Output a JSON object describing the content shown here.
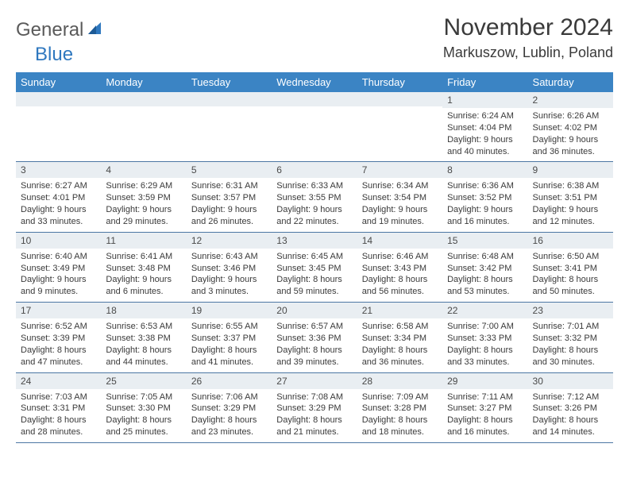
{
  "logo": {
    "text1": "General",
    "text2": "Blue"
  },
  "title": "November 2024",
  "location": "Markuszow, Lublin, Poland",
  "colors": {
    "header_bg": "#3b84c4",
    "header_text": "#ffffff",
    "daynum_bg": "#e9eef2",
    "cell_border": "#4c77a3",
    "body_text": "#3a3a3a",
    "logo_gray": "#5a5a5a",
    "logo_blue": "#2f78bf"
  },
  "day_headers": [
    "Sunday",
    "Monday",
    "Tuesday",
    "Wednesday",
    "Thursday",
    "Friday",
    "Saturday"
  ],
  "weeks": [
    [
      {
        "n": "",
        "sr": "",
        "ss": "",
        "dl": ""
      },
      {
        "n": "",
        "sr": "",
        "ss": "",
        "dl": ""
      },
      {
        "n": "",
        "sr": "",
        "ss": "",
        "dl": ""
      },
      {
        "n": "",
        "sr": "",
        "ss": "",
        "dl": ""
      },
      {
        "n": "",
        "sr": "",
        "ss": "",
        "dl": ""
      },
      {
        "n": "1",
        "sr": "Sunrise: 6:24 AM",
        "ss": "Sunset: 4:04 PM",
        "dl": "Daylight: 9 hours and 40 minutes."
      },
      {
        "n": "2",
        "sr": "Sunrise: 6:26 AM",
        "ss": "Sunset: 4:02 PM",
        "dl": "Daylight: 9 hours and 36 minutes."
      }
    ],
    [
      {
        "n": "3",
        "sr": "Sunrise: 6:27 AM",
        "ss": "Sunset: 4:01 PM",
        "dl": "Daylight: 9 hours and 33 minutes."
      },
      {
        "n": "4",
        "sr": "Sunrise: 6:29 AM",
        "ss": "Sunset: 3:59 PM",
        "dl": "Daylight: 9 hours and 29 minutes."
      },
      {
        "n": "5",
        "sr": "Sunrise: 6:31 AM",
        "ss": "Sunset: 3:57 PM",
        "dl": "Daylight: 9 hours and 26 minutes."
      },
      {
        "n": "6",
        "sr": "Sunrise: 6:33 AM",
        "ss": "Sunset: 3:55 PM",
        "dl": "Daylight: 9 hours and 22 minutes."
      },
      {
        "n": "7",
        "sr": "Sunrise: 6:34 AM",
        "ss": "Sunset: 3:54 PM",
        "dl": "Daylight: 9 hours and 19 minutes."
      },
      {
        "n": "8",
        "sr": "Sunrise: 6:36 AM",
        "ss": "Sunset: 3:52 PM",
        "dl": "Daylight: 9 hours and 16 minutes."
      },
      {
        "n": "9",
        "sr": "Sunrise: 6:38 AM",
        "ss": "Sunset: 3:51 PM",
        "dl": "Daylight: 9 hours and 12 minutes."
      }
    ],
    [
      {
        "n": "10",
        "sr": "Sunrise: 6:40 AM",
        "ss": "Sunset: 3:49 PM",
        "dl": "Daylight: 9 hours and 9 minutes."
      },
      {
        "n": "11",
        "sr": "Sunrise: 6:41 AM",
        "ss": "Sunset: 3:48 PM",
        "dl": "Daylight: 9 hours and 6 minutes."
      },
      {
        "n": "12",
        "sr": "Sunrise: 6:43 AM",
        "ss": "Sunset: 3:46 PM",
        "dl": "Daylight: 9 hours and 3 minutes."
      },
      {
        "n": "13",
        "sr": "Sunrise: 6:45 AM",
        "ss": "Sunset: 3:45 PM",
        "dl": "Daylight: 8 hours and 59 minutes."
      },
      {
        "n": "14",
        "sr": "Sunrise: 6:46 AM",
        "ss": "Sunset: 3:43 PM",
        "dl": "Daylight: 8 hours and 56 minutes."
      },
      {
        "n": "15",
        "sr": "Sunrise: 6:48 AM",
        "ss": "Sunset: 3:42 PM",
        "dl": "Daylight: 8 hours and 53 minutes."
      },
      {
        "n": "16",
        "sr": "Sunrise: 6:50 AM",
        "ss": "Sunset: 3:41 PM",
        "dl": "Daylight: 8 hours and 50 minutes."
      }
    ],
    [
      {
        "n": "17",
        "sr": "Sunrise: 6:52 AM",
        "ss": "Sunset: 3:39 PM",
        "dl": "Daylight: 8 hours and 47 minutes."
      },
      {
        "n": "18",
        "sr": "Sunrise: 6:53 AM",
        "ss": "Sunset: 3:38 PM",
        "dl": "Daylight: 8 hours and 44 minutes."
      },
      {
        "n": "19",
        "sr": "Sunrise: 6:55 AM",
        "ss": "Sunset: 3:37 PM",
        "dl": "Daylight: 8 hours and 41 minutes."
      },
      {
        "n": "20",
        "sr": "Sunrise: 6:57 AM",
        "ss": "Sunset: 3:36 PM",
        "dl": "Daylight: 8 hours and 39 minutes."
      },
      {
        "n": "21",
        "sr": "Sunrise: 6:58 AM",
        "ss": "Sunset: 3:34 PM",
        "dl": "Daylight: 8 hours and 36 minutes."
      },
      {
        "n": "22",
        "sr": "Sunrise: 7:00 AM",
        "ss": "Sunset: 3:33 PM",
        "dl": "Daylight: 8 hours and 33 minutes."
      },
      {
        "n": "23",
        "sr": "Sunrise: 7:01 AM",
        "ss": "Sunset: 3:32 PM",
        "dl": "Daylight: 8 hours and 30 minutes."
      }
    ],
    [
      {
        "n": "24",
        "sr": "Sunrise: 7:03 AM",
        "ss": "Sunset: 3:31 PM",
        "dl": "Daylight: 8 hours and 28 minutes."
      },
      {
        "n": "25",
        "sr": "Sunrise: 7:05 AM",
        "ss": "Sunset: 3:30 PM",
        "dl": "Daylight: 8 hours and 25 minutes."
      },
      {
        "n": "26",
        "sr": "Sunrise: 7:06 AM",
        "ss": "Sunset: 3:29 PM",
        "dl": "Daylight: 8 hours and 23 minutes."
      },
      {
        "n": "27",
        "sr": "Sunrise: 7:08 AM",
        "ss": "Sunset: 3:29 PM",
        "dl": "Daylight: 8 hours and 21 minutes."
      },
      {
        "n": "28",
        "sr": "Sunrise: 7:09 AM",
        "ss": "Sunset: 3:28 PM",
        "dl": "Daylight: 8 hours and 18 minutes."
      },
      {
        "n": "29",
        "sr": "Sunrise: 7:11 AM",
        "ss": "Sunset: 3:27 PM",
        "dl": "Daylight: 8 hours and 16 minutes."
      },
      {
        "n": "30",
        "sr": "Sunrise: 7:12 AM",
        "ss": "Sunset: 3:26 PM",
        "dl": "Daylight: 8 hours and 14 minutes."
      }
    ]
  ]
}
